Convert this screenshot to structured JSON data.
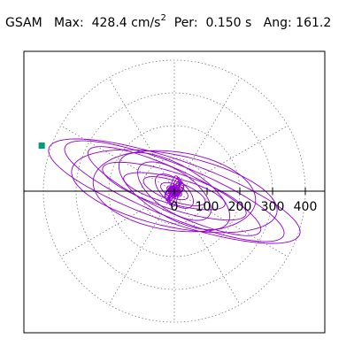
{
  "header": {
    "station": "GSAM",
    "max_label": "Max:",
    "max_value": "428.4 cm/s",
    "max_unit_exp": "2",
    "per_label": "Per:",
    "per_value": "0.150 s",
    "ang_label": "Ang:",
    "ang_value": "161.2"
  },
  "colors": {
    "trace": "#9400d3",
    "marker": "#009b77",
    "grid": "#7f7f7f",
    "axis": "#000000"
  },
  "chart_data": {
    "type": "line",
    "title": "",
    "xlabel": "",
    "ylabel": "",
    "polar_grid": true,
    "grid_rings": [
      100,
      200,
      300,
      400
    ],
    "grid_spokes_deg": [
      0,
      30,
      60,
      90,
      120,
      150,
      180,
      210,
      240,
      270,
      300,
      330
    ],
    "x_ticks": [
      {
        "value": 0,
        "label": "0"
      },
      {
        "value": 100,
        "label": "100"
      },
      {
        "value": 200,
        "label": "200"
      },
      {
        "value": 300,
        "label": "300"
      },
      {
        "value": 400,
        "label": "400"
      }
    ],
    "xlim": [
      -450,
      450
    ],
    "ylim": [
      -450,
      450
    ],
    "max_point": {
      "x": -405,
      "y": 139
    },
    "orbit_series": {
      "name": "",
      "loops": [
        {
          "a": 405,
          "b": 95,
          "angle_deg": -19
        },
        {
          "a": 360,
          "b": 80,
          "angle_deg": -22
        },
        {
          "a": 320,
          "b": 110,
          "angle_deg": -12
        },
        {
          "a": 290,
          "b": 65,
          "angle_deg": -25
        },
        {
          "a": 250,
          "b": 120,
          "angle_deg": -8
        },
        {
          "a": 230,
          "b": 55,
          "angle_deg": -18
        },
        {
          "a": 190,
          "b": 80,
          "angle_deg": -30
        },
        {
          "a": 160,
          "b": 40,
          "angle_deg": -15
        },
        {
          "a": 130,
          "b": 60,
          "angle_deg": -35
        },
        {
          "a": 100,
          "b": 30,
          "angle_deg": -20
        },
        {
          "a": 70,
          "b": 35,
          "angle_deg": -40
        },
        {
          "a": 45,
          "b": 20,
          "angle_deg": -25
        },
        {
          "a": 25,
          "b": 12,
          "angle_deg": -30
        }
      ]
    }
  }
}
